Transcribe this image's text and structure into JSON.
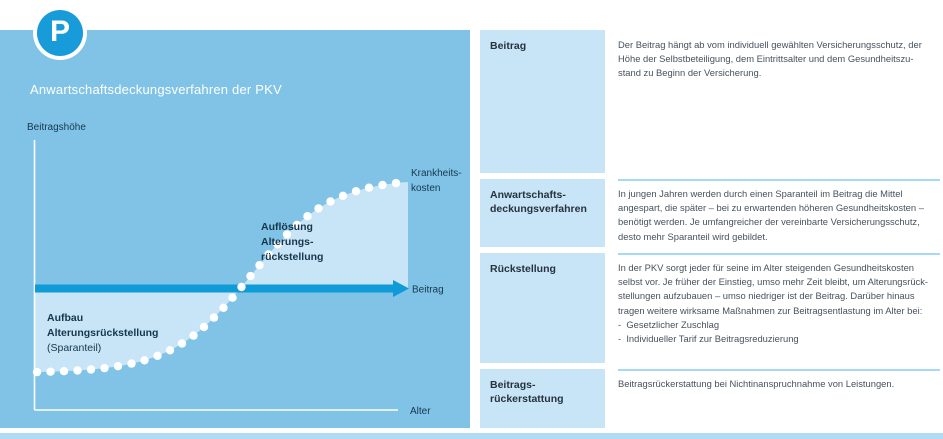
{
  "badge": {
    "letter": "P"
  },
  "colors": {
    "panel_blue": "#80C3E7",
    "light_reserve_area": "#C7E5F7",
    "contribution_line": "#0F9AD8",
    "badge_blue": "#189CD9",
    "divider_blue": "#A6D9F3",
    "dot_white": "#FFFFFF"
  },
  "chart": {
    "title": "Anwartschaftsdeckungsverfahren der PKV",
    "y_axis_label": "Beitragshöhe",
    "x_axis_label": "Alter",
    "curve_label_lines": [
      "Krankheits-",
      "kosten"
    ],
    "contribution_line_label": "Beitrag",
    "area_lower_lines": [
      "Aufbau",
      "Alterungsrückstellung",
      "(Sparanteil)"
    ],
    "area_upper_lines": [
      "Auflösung",
      "Alterungs-",
      "rückstellung"
    ]
  },
  "chart_data": {
    "type": "line",
    "xlabel": "Alter",
    "ylabel": "Beitragshöhe",
    "series": [
      {
        "name": "Krankheitskosten",
        "shape": "s-curve rising with age",
        "style": "white dotted curve"
      },
      {
        "name": "Beitrag",
        "shape": "constant horizontal level",
        "style": "solid blue arrow line"
      }
    ],
    "areas": [
      {
        "name": "Aufbau Alterungsrückstellung (Sparanteil)",
        "location": "between constant Beitrag line (above) and Krankheitskosten curve (below) at young ages"
      },
      {
        "name": "Auflösung Alterungsrückstellung",
        "location": "between Krankheitskosten curve (above) and Beitrag line (below) at old ages"
      }
    ],
    "grid": false,
    "legend": false
  },
  "glossary": {
    "rows": [
      {
        "term": [
          "Beitrag"
        ],
        "definition": [
          "Der Beitrag hängt ab vom individuell gewählten Versicherungsschutz, der",
          "Höhe der Selbstbeteiligung, dem Eintrittsalter und dem Gesundheitszu-",
          "stand zu Beginn der Versicherung."
        ]
      },
      {
        "term": [
          "Anwartschafts-",
          "deckungsverfahren"
        ],
        "definition": [
          "In jungen Jahren werden durch einen Sparanteil im Beitrag die Mittel",
          "angespart, die später – bei zu erwartenden höheren Gesundheitskosten –",
          "benötigt werden. Je umfangreicher der vereinbarte Versicherungsschutz,",
          "desto mehr Sparanteil wird gebildet."
        ]
      },
      {
        "term": [
          "Rückstellung"
        ],
        "definition": [
          "In der PKV sorgt jeder für seine im Alter steigenden Gesundheitskosten",
          "selbst vor. Je früher der Einstieg, umso mehr Zeit bleibt, um Alterungsrück-",
          "stellungen aufzubauen – umso niedriger ist der Beitrag. Darüber hinaus",
          "tragen weitere wirksame Maßnahmen zur Beitragsentlastung im Alter bei:",
          "-  Gesetzlicher Zuschlag",
          "-  Individueller Tarif zur Beitragsreduzierung"
        ]
      },
      {
        "term": [
          "Beitrags-",
          "rückerstattung"
        ],
        "definition": [
          "Beitragsrückerstattung bei Nichtinanspruchnahme von Leistungen."
        ]
      }
    ]
  }
}
